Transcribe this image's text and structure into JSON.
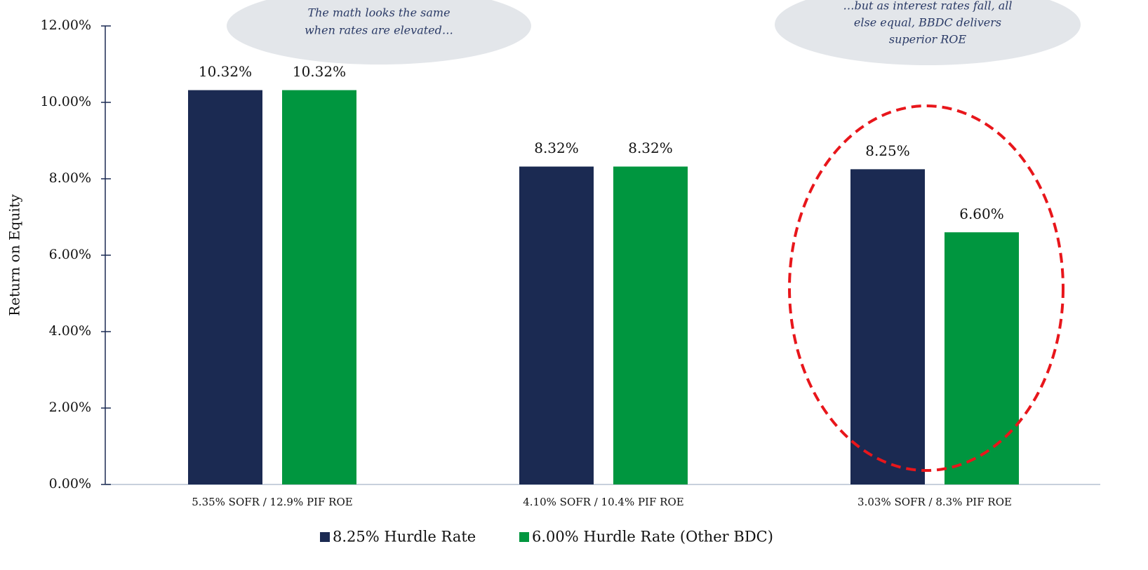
{
  "chart_data": {
    "type": "bar",
    "y_label": "Return on Equity",
    "categories": [
      "5.35% SOFR / 12.9% PIF ROE",
      "4.10% SOFR / 10.4% PIF ROE",
      "3.03% SOFR / 8.3% PIF ROE"
    ],
    "series": [
      {
        "name": "8.25% Hurdle Rate",
        "color": "#1b2a52",
        "values": [
          10.32,
          8.32,
          8.25
        ],
        "value_labels": [
          "10.32%",
          "8.32%",
          "8.25%"
        ]
      },
      {
        "name": "6.00% Hurdle Rate (Other BDC)",
        "color": "#00963f",
        "values": [
          10.32,
          8.32,
          6.6
        ],
        "value_labels": [
          "10.32%",
          "8.32%",
          "6.60%"
        ]
      }
    ],
    "ylim": [
      0,
      12
    ],
    "yticks": [
      {
        "value": 0,
        "label": "0.00%"
      },
      {
        "value": 2,
        "label": "2.00%"
      },
      {
        "value": 4,
        "label": "4.00%"
      },
      {
        "value": 6,
        "label": "6.00%"
      },
      {
        "value": 8,
        "label": "8.00%"
      },
      {
        "value": 10,
        "label": "10.00%"
      },
      {
        "value": 12,
        "label": "12.00%"
      }
    ],
    "legend": "bottom",
    "annotations": [
      {
        "lines": [
          "The math looks the same",
          "when rates are elevated…"
        ]
      },
      {
        "lines": [
          "…but as interest rates fall, all",
          "else equal, BBDC delivers",
          "superior ROE"
        ]
      }
    ]
  }
}
